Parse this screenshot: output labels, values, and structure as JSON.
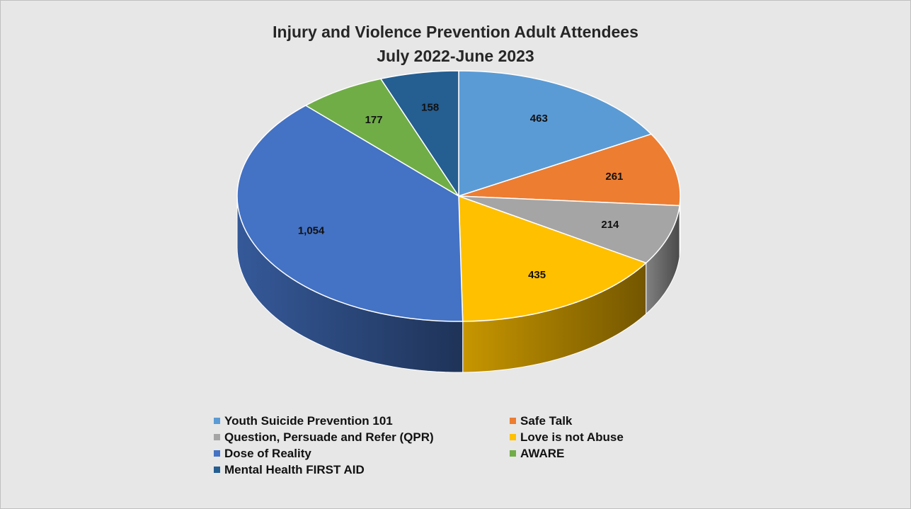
{
  "chart_data": {
    "type": "pie",
    "title": "Injury and Violence Prevention Adult Attendees",
    "subtitle": "July 2022-June 2023",
    "legend_position": "bottom",
    "slices": [
      {
        "label": "Youth Suicide Prevention 101",
        "value": 463,
        "display": "463",
        "color": "#5b9bd5"
      },
      {
        "label": "Safe Talk",
        "value": 261,
        "display": "261",
        "color": "#ed7d31"
      },
      {
        "label": "Question, Persuade and Refer (QPR)",
        "value": 214,
        "display": "214",
        "color": "#a5a5a5"
      },
      {
        "label": "Love is not Abuse",
        "value": 435,
        "display": "435",
        "color": "#ffc000"
      },
      {
        "label": "Dose of Reality",
        "value": 1054,
        "display": "1,054",
        "color": "#4472c4"
      },
      {
        "label": "AWARE",
        "value": 177,
        "display": "177",
        "color": "#70ad47"
      },
      {
        "label": "Mental Health FIRST AID",
        "value": 158,
        "display": "158",
        "color": "#255e91"
      }
    ]
  }
}
